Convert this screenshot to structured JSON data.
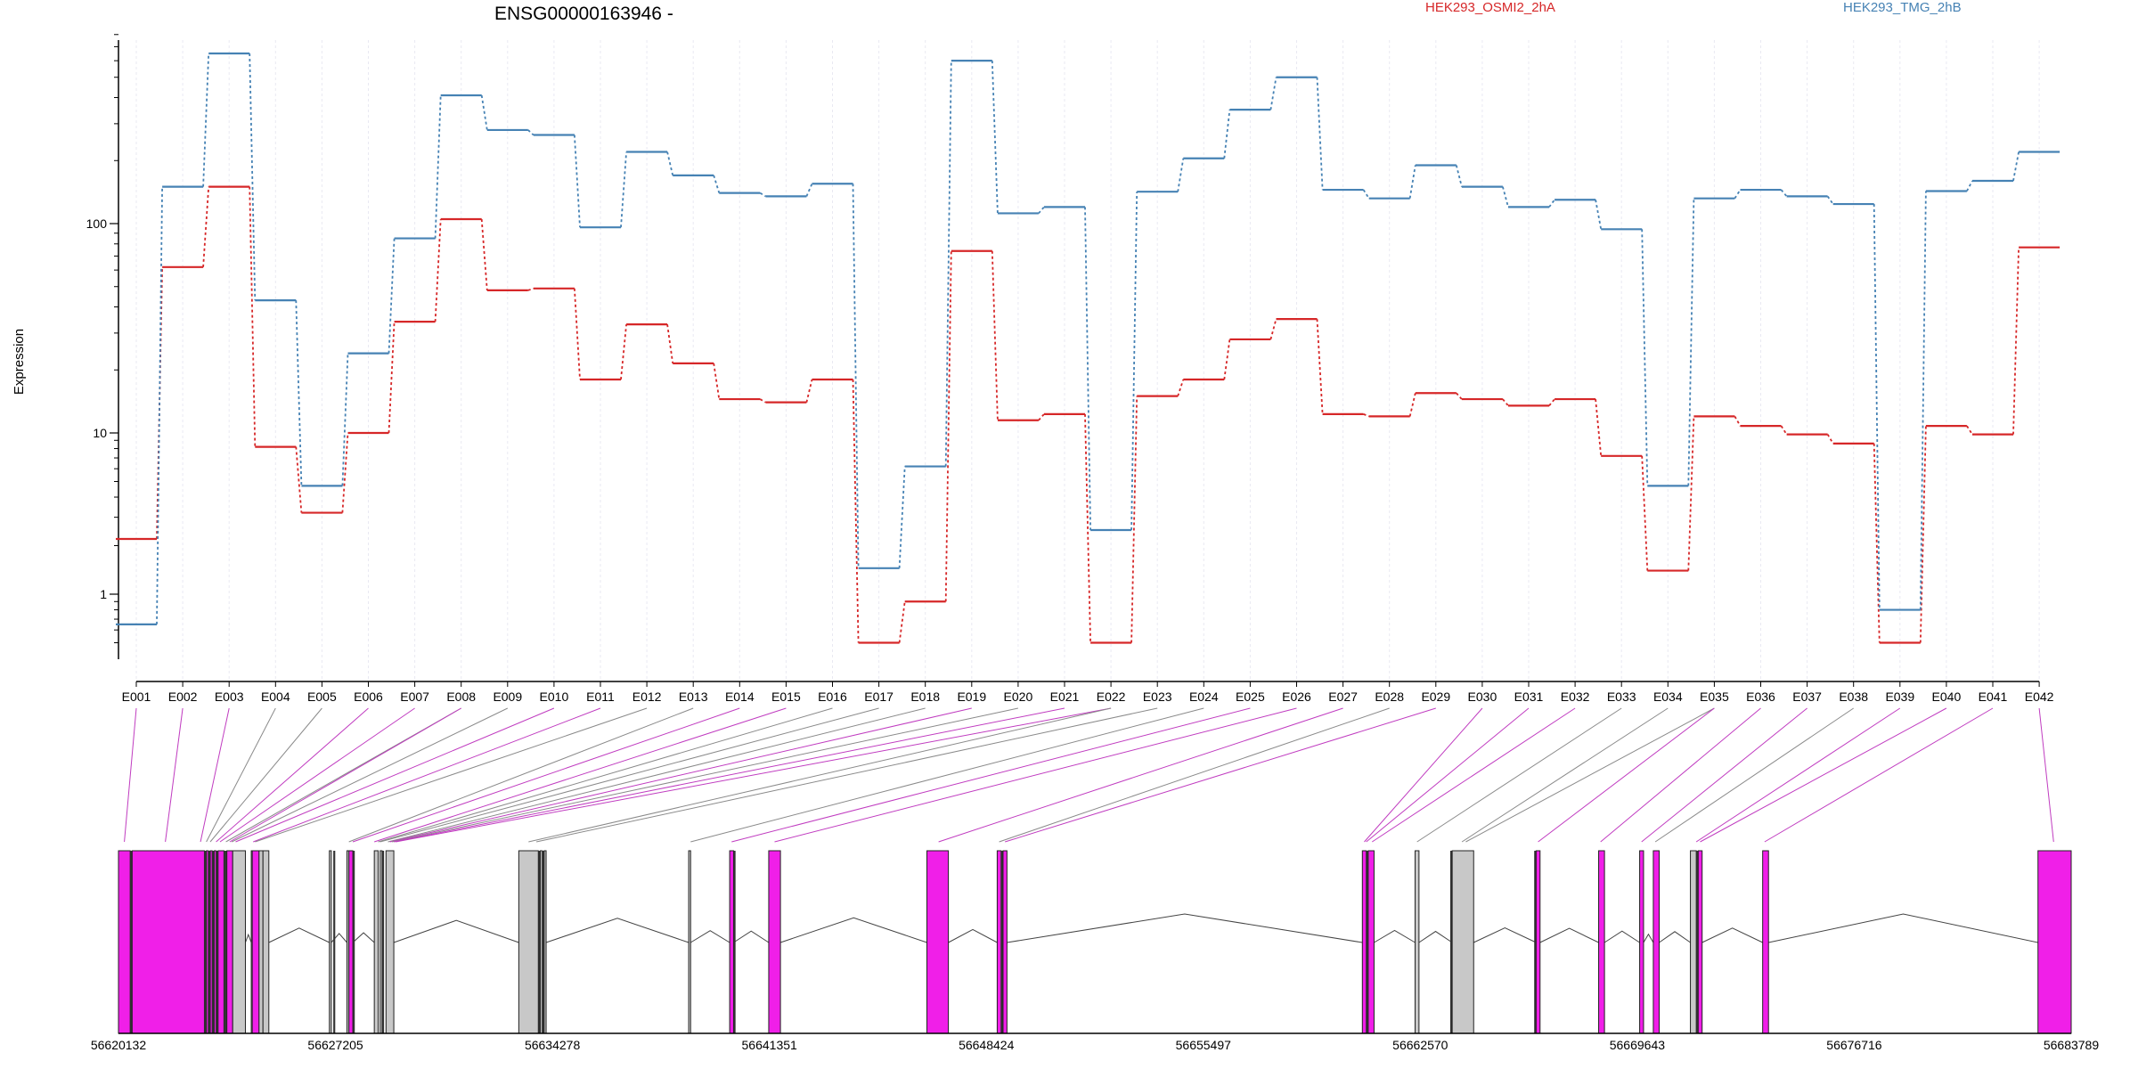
{
  "chart_data": {
    "type": "line",
    "title": "ENSG00000163946 -",
    "ylabel": "Expression",
    "y_scale": "log",
    "y_ticks": [
      1,
      10,
      100
    ],
    "y_tick_labels": [
      "1",
      "10",
      "100"
    ],
    "categories": [
      "E001",
      "E002",
      "E003",
      "E004",
      "E005",
      "E006",
      "E007",
      "E008",
      "E009",
      "E010",
      "E011",
      "E012",
      "E013",
      "E014",
      "E015",
      "E016",
      "E017",
      "E018",
      "E019",
      "E020",
      "E021",
      "E022",
      "E023",
      "E024",
      "E025",
      "E026",
      "E027",
      "E028",
      "E029",
      "E030",
      "E031",
      "E032",
      "E033",
      "E034",
      "E035",
      "E036",
      "E037",
      "E038",
      "E039",
      "E040",
      "E041",
      "E042"
    ],
    "series": [
      {
        "name": "HEK293_OSMI2_2hA",
        "color": "#d62728",
        "values": [
          2.2,
          62,
          150,
          8.2,
          3.2,
          10,
          34,
          105,
          48,
          49,
          18,
          33,
          21.5,
          14.5,
          14,
          18,
          0.5,
          0.9,
          74,
          11.5,
          12.3,
          0.5,
          15,
          18,
          28,
          35,
          12.3,
          12,
          15.5,
          14.5,
          13.5,
          14.5,
          7.2,
          1.4,
          12,
          10.8,
          9.8,
          8.6,
          0.5,
          10.8,
          9.8,
          77
        ]
      },
      {
        "name": "HEK293_TMG_2hB",
        "color": "#4682b4",
        "values": [
          0.65,
          150,
          650,
          43,
          4.7,
          24,
          85,
          410,
          280,
          265,
          96,
          220,
          170,
          140,
          135,
          155,
          1.45,
          6.2,
          600,
          112,
          120,
          2.5,
          142,
          205,
          350,
          500,
          145,
          132,
          190,
          150,
          120,
          130,
          94,
          4.7,
          132,
          145,
          135,
          124,
          0.8,
          143,
          160,
          220
        ]
      }
    ],
    "gene_model": {
      "coordinate_ticks": [
        "56620132",
        "56627205",
        "56634278",
        "56641351",
        "56648424",
        "56655497",
        "56662570",
        "56669643",
        "56676716",
        "56683789"
      ],
      "exon_blocks": [
        {
          "start": 0.0,
          "end": 0.006,
          "type": "pink"
        },
        {
          "start": 0.006,
          "end": 0.007,
          "type": "line"
        },
        {
          "start": 0.007,
          "end": 0.044,
          "type": "pink"
        },
        {
          "start": 0.044,
          "end": 0.045,
          "type": "line"
        },
        {
          "start": 0.045,
          "end": 0.046,
          "type": "pink"
        },
        {
          "start": 0.046,
          "end": 0.047,
          "type": "line"
        },
        {
          "start": 0.047,
          "end": 0.048,
          "type": "pink"
        },
        {
          "start": 0.048,
          "end": 0.049,
          "type": "line"
        },
        {
          "start": 0.049,
          "end": 0.05,
          "type": "pink"
        },
        {
          "start": 0.05,
          "end": 0.051,
          "type": "line"
        },
        {
          "start": 0.051,
          "end": 0.054,
          "type": "pink"
        },
        {
          "start": 0.054,
          "end": 0.0555,
          "type": "line"
        },
        {
          "start": 0.0555,
          "end": 0.0585,
          "type": "pink"
        },
        {
          "start": 0.0585,
          "end": 0.065,
          "type": "gray"
        },
        {
          "start": 0.068,
          "end": 0.069,
          "type": "gray"
        },
        {
          "start": 0.069,
          "end": 0.07,
          "type": "line"
        },
        {
          "start": 0.0685,
          "end": 0.072,
          "type": "pink"
        },
        {
          "start": 0.072,
          "end": 0.074,
          "type": "gray"
        },
        {
          "start": 0.074,
          "end": 0.077,
          "type": "gray"
        },
        {
          "start": 0.108,
          "end": 0.109,
          "type": "gray"
        },
        {
          "start": 0.11,
          "end": 0.111,
          "type": "line"
        },
        {
          "start": 0.117,
          "end": 0.118,
          "type": "gray"
        },
        {
          "start": 0.118,
          "end": 0.12,
          "type": "pink"
        },
        {
          "start": 0.12,
          "end": 0.121,
          "type": "line"
        },
        {
          "start": 0.131,
          "end": 0.133,
          "type": "gray"
        },
        {
          "start": 0.134,
          "end": 0.135,
          "type": "gray"
        },
        {
          "start": 0.135,
          "end": 0.136,
          "type": "line"
        },
        {
          "start": 0.137,
          "end": 0.141,
          "type": "gray"
        },
        {
          "start": 0.205,
          "end": 0.215,
          "type": "gray"
        },
        {
          "start": 0.215,
          "end": 0.216,
          "type": "line"
        },
        {
          "start": 0.216,
          "end": 0.217,
          "type": "gray"
        },
        {
          "start": 0.217,
          "end": 0.218,
          "type": "line"
        },
        {
          "start": 0.218,
          "end": 0.219,
          "type": "gray"
        },
        {
          "start": 0.292,
          "end": 0.293,
          "type": "gray"
        },
        {
          "start": 0.313,
          "end": 0.315,
          "type": "pink"
        },
        {
          "start": 0.315,
          "end": 0.316,
          "type": "line"
        },
        {
          "start": 0.333,
          "end": 0.339,
          "type": "pink"
        },
        {
          "start": 0.414,
          "end": 0.425,
          "type": "pink"
        },
        {
          "start": 0.45,
          "end": 0.452,
          "type": "pink"
        },
        {
          "start": 0.452,
          "end": 0.453,
          "type": "line"
        },
        {
          "start": 0.453,
          "end": 0.455,
          "type": "pink"
        },
        {
          "start": 0.637,
          "end": 0.639,
          "type": "pink"
        },
        {
          "start": 0.639,
          "end": 0.64,
          "type": "line"
        },
        {
          "start": 0.64,
          "end": 0.643,
          "type": "pink"
        },
        {
          "start": 0.664,
          "end": 0.666,
          "type": "gray"
        },
        {
          "start": 0.682,
          "end": 0.683,
          "type": "line"
        },
        {
          "start": 0.683,
          "end": 0.694,
          "type": "gray"
        },
        {
          "start": 0.725,
          "end": 0.726,
          "type": "line"
        },
        {
          "start": 0.726,
          "end": 0.728,
          "type": "pink"
        },
        {
          "start": 0.758,
          "end": 0.761,
          "type": "pink"
        },
        {
          "start": 0.779,
          "end": 0.781,
          "type": "pink"
        },
        {
          "start": 0.786,
          "end": 0.789,
          "type": "pink"
        },
        {
          "start": 0.805,
          "end": 0.808,
          "type": "gray"
        },
        {
          "start": 0.808,
          "end": 0.809,
          "type": "line"
        },
        {
          "start": 0.809,
          "end": 0.811,
          "type": "pink"
        },
        {
          "start": 0.842,
          "end": 0.845,
          "type": "pink"
        },
        {
          "start": 0.983,
          "end": 1.0,
          "type": "pink"
        }
      ],
      "exon_link_targets": [
        0.003,
        0.024,
        0.042,
        0.045,
        0.047,
        0.05,
        0.052,
        0.055,
        0.057,
        0.058,
        0.06,
        0.069,
        0.07,
        0.118,
        0.12,
        0.131,
        0.133,
        0.134,
        0.138,
        0.139,
        0.14,
        0.141,
        0.142,
        0.21,
        0.214,
        0.293,
        0.314,
        0.336,
        0.42,
        0.451,
        0.454,
        0.638,
        0.639,
        0.642,
        0.665,
        0.688,
        0.69,
        0.727,
        0.759,
        0.78,
        0.787,
        0.808,
        0.81,
        0.843,
        0.991
      ],
      "link_colors": [
        "m",
        "m",
        "m",
        "g",
        "g",
        "m",
        "m",
        "g",
        "m",
        "g",
        "m",
        "m",
        "g",
        "g",
        "m",
        "m",
        "g",
        "g",
        "g",
        "m",
        "g",
        "m",
        "m",
        "g",
        "g",
        "g",
        "m",
        "m",
        "m",
        "g",
        "m",
        "m",
        "m",
        "m",
        "g",
        "g",
        "g",
        "m",
        "m",
        "m",
        "g",
        "m",
        "m",
        "m",
        "m"
      ],
      "colors": {
        "exon_pink": "#f01fe8",
        "exon_gray": "#c8c8c8",
        "link_magenta": "#c03cc0",
        "link_gray": "#8a8a8a",
        "intron_line": "#444444"
      }
    }
  }
}
